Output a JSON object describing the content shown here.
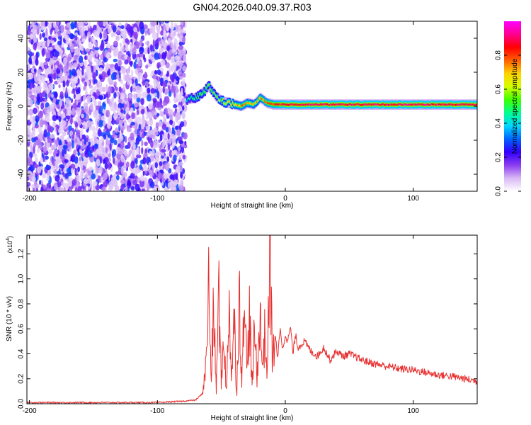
{
  "title": "GN04.2026.040.09.37.R03",
  "chart_data": [
    {
      "type": "heatmap",
      "xlabel": "Height of straight line (km)",
      "ylabel": "Frequency (Hz)",
      "xlim": [
        -202,
        150
      ],
      "ylim": [
        -50,
        50
      ],
      "xticks": [
        -200,
        -100,
        0,
        100
      ],
      "yticks": [
        -40,
        -20,
        0,
        20,
        40
      ],
      "colorbar": {
        "label": "Normalized spectral amplitude",
        "range": [
          0,
          1
        ],
        "ticks": [
          "0.0",
          "0.2",
          "0.4",
          "0.6",
          "0.8"
        ],
        "colors": [
          "#ffffff",
          "#d8b8f4",
          "#8a3cf0",
          "#3200ff",
          "#0064ff",
          "#00d8ff",
          "#00ff90",
          "#40ff00",
          "#d4ff00",
          "#ffd400",
          "#ff6000",
          "#ff0000",
          "#ff0090",
          "#ff00ff"
        ]
      },
      "noise_region": {
        "x_range": [
          -202,
          -78
        ],
        "freq_range": [
          -50,
          50
        ],
        "amplitude": [
          0.05,
          0.3
        ]
      },
      "ridge": {
        "x": [
          -78,
          -70,
          -65,
          -60,
          -55,
          -50,
          -45,
          -40,
          -35,
          -30,
          -25,
          -20,
          -15,
          -10,
          0,
          20,
          50,
          100,
          150
        ],
        "freq": [
          4,
          5,
          8,
          12,
          6,
          3,
          2,
          1,
          0,
          2,
          1,
          5,
          2,
          1,
          1,
          1,
          1,
          1,
          1
        ],
        "amplitude": [
          0.45,
          0.55,
          0.6,
          0.6,
          0.6,
          0.65,
          0.7,
          0.75,
          0.8,
          0.8,
          0.75,
          0.8,
          0.85,
          0.9,
          0.95,
          0.95,
          0.95,
          0.95,
          0.95
        ]
      }
    },
    {
      "type": "line",
      "xlabel": "Height of straight line (km)",
      "ylabel": "SNR (10 * v/v)",
      "scale_label": "(x10",
      "scale_exponent": "4",
      "xlim": [
        -202,
        150
      ],
      "ylim": [
        0,
        1.35
      ],
      "xticks": [
        -200,
        -100,
        0,
        100
      ],
      "yticks": [
        "0.0",
        "0.2",
        "0.4",
        "0.6",
        "0.8",
        "1.0",
        "1.2"
      ],
      "series": [
        {
          "color": "#e83030",
          "x": [
            -202,
            -150,
            -100,
            -80,
            -70,
            -65,
            -62,
            -60,
            -58,
            -56,
            -54,
            -52,
            -50,
            -48,
            -46,
            -44,
            -42,
            -40,
            -38,
            -36,
            -34,
            -32,
            -30,
            -28,
            -26,
            -24,
            -22,
            -20,
            -18,
            -16,
            -14,
            -12,
            -10,
            -8,
            -6,
            -4,
            -2,
            0,
            2,
            4,
            6,
            8,
            10,
            15,
            20,
            25,
            30,
            35,
            40,
            45,
            50,
            60,
            70,
            80,
            90,
            100,
            110,
            120,
            130,
            140,
            150
          ],
          "y": [
            0.01,
            0.01,
            0.01,
            0.02,
            0.03,
            0.08,
            0.3,
            0.97,
            0.2,
            0.75,
            0.1,
            0.9,
            0.15,
            0.6,
            0.05,
            0.85,
            0.2,
            0.7,
            0.05,
            0.95,
            0.1,
            1.12,
            0.2,
            0.75,
            0.1,
            0.6,
            0.2,
            0.75,
            0.3,
            0.55,
            0.25,
            1.32,
            0.3,
            0.58,
            0.35,
            0.62,
            0.42,
            0.56,
            0.5,
            0.62,
            0.4,
            0.55,
            0.45,
            0.5,
            0.42,
            0.38,
            0.45,
            0.35,
            0.42,
            0.38,
            0.4,
            0.35,
            0.32,
            0.3,
            0.28,
            0.27,
            0.25,
            0.23,
            0.22,
            0.2,
            0.18
          ]
        }
      ]
    }
  ]
}
